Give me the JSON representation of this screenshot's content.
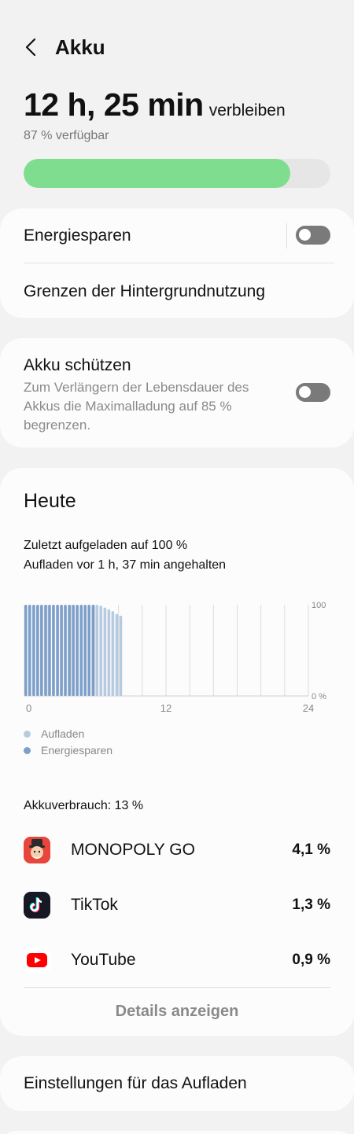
{
  "header": {
    "title": "Akku"
  },
  "summary": {
    "remaining_value": "12 h, 25 min",
    "remaining_suffix": "verbleiben",
    "available": "87 % verfügbar",
    "level": 0.87
  },
  "colors": {
    "battery_fill": "#7fdd8f",
    "energy_saving": "#7d9fc9",
    "charging": "#b7cbe0",
    "toggle_off": "#7a7a7a"
  },
  "settings_card": {
    "power_saving_label": "Energiesparen",
    "power_saving_on": false,
    "background_limits_label": "Grenzen der Hintergrundnutzung"
  },
  "protect_card": {
    "title": "Akku schützen",
    "description_line1": "Zum Verlängern der Lebensdauer des",
    "description_line2": "Akkus die Maximalladung auf 85 %",
    "description_line3": "begrenzen.",
    "enabled": false
  },
  "today": {
    "title": "Heute",
    "last_charged": "Zuletzt aufgeladen auf 100 %",
    "charging_stopped": "Aufladen vor 1 h, 37 min angehalten",
    "legend": {
      "charging": "Aufladen",
      "energy_saving": "Energiesparen"
    },
    "usage_label": "Akkuverbrauch: 13 %",
    "details_button": "Details anzeigen",
    "apps": [
      {
        "name": "MONOPOLY GO",
        "percent": "4,1 %",
        "icon": "monopoly-go-icon"
      },
      {
        "name": "TikTok",
        "percent": "1,3 %",
        "icon": "tiktok-icon"
      },
      {
        "name": "YouTube",
        "percent": "0,9 %",
        "icon": "youtube-icon"
      }
    ]
  },
  "chart_data": {
    "type": "bar",
    "x_ticks": [
      "0",
      "12",
      "24"
    ],
    "y_ticks": [
      "100",
      "0 %"
    ],
    "xlim": [
      0,
      24
    ],
    "ylim": [
      0,
      100
    ],
    "grid": true,
    "legend_placement": "bottom-left",
    "series": [
      {
        "name": "Energiesparen",
        "x": [
          0,
          0.33,
          0.67,
          1,
          1.33,
          1.67,
          2,
          2.33,
          2.67,
          3,
          3.33,
          3.67,
          4,
          4.33,
          4.67,
          5,
          5.33,
          5.67
        ],
        "values": [
          100,
          100,
          100,
          100,
          100,
          100,
          100,
          100,
          100,
          100,
          100,
          100,
          100,
          100,
          100,
          100,
          100,
          100
        ]
      },
      {
        "name": "Aufladen",
        "x": [
          6,
          6.33,
          6.67,
          7,
          7.33,
          7.67,
          8
        ],
        "values": [
          100,
          99,
          97,
          95,
          93,
          90,
          88
        ]
      }
    ]
  },
  "charging_settings": {
    "label": "Einstellungen für das Aufladen"
  }
}
